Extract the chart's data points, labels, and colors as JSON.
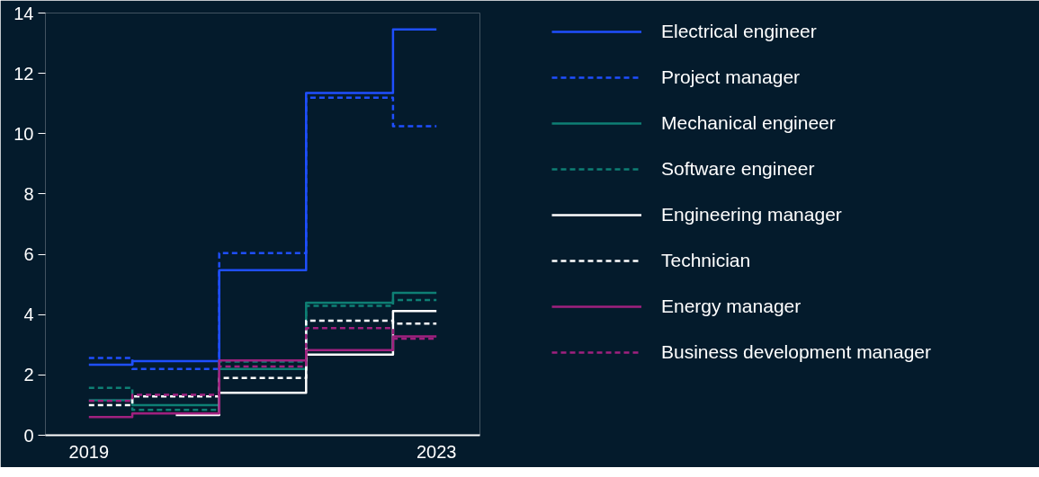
{
  "chart_data": {
    "type": "step",
    "x": [
      2019,
      2020,
      2021,
      2022,
      2023
    ],
    "xlim": [
      2018.5,
      2023.5
    ],
    "xticks": [
      2019,
      2023
    ],
    "ylim": [
      0,
      14
    ],
    "yticks": [
      0,
      2,
      4,
      6,
      8,
      10,
      12,
      14
    ],
    "grid": false,
    "legend": "right",
    "series": [
      {
        "name": "Electrical engineer",
        "color": "#1f4fff",
        "line_style": "solid",
        "values": [
          2.34,
          2.46,
          5.47,
          11.35,
          13.46
        ]
      },
      {
        "name": "Project manager",
        "color": "#1f4fff",
        "line_style": "dashed",
        "values": [
          2.56,
          2.2,
          6.04,
          11.19,
          10.25
        ]
      },
      {
        "name": "Mechanical engineer",
        "color": "#0e7f74",
        "line_style": "solid",
        "values": [
          1.16,
          1.0,
          2.2,
          4.39,
          4.72
        ]
      },
      {
        "name": "Software engineer",
        "color": "#0e7f74",
        "line_style": "dashed",
        "values": [
          1.57,
          0.84,
          2.44,
          4.29,
          4.48
        ]
      },
      {
        "name": "Engineering manager",
        "color": "#ffffff",
        "line_style": "solid",
        "values": [
          null,
          0.67,
          1.41,
          2.67,
          4.12
        ]
      },
      {
        "name": "Technician",
        "color": "#ffffff",
        "line_style": "dashed",
        "values": [
          1.0,
          1.29,
          1.9,
          3.8,
          3.7
        ]
      },
      {
        "name": "Energy manager",
        "color": "#a0217f",
        "line_style": "solid",
        "values": [
          0.6,
          0.72,
          2.48,
          2.82,
          3.28
        ]
      },
      {
        "name": "Business development manager",
        "color": "#a0217f",
        "line_style": "dashed",
        "values": [
          1.14,
          1.34,
          2.28,
          3.55,
          3.2
        ]
      }
    ]
  }
}
